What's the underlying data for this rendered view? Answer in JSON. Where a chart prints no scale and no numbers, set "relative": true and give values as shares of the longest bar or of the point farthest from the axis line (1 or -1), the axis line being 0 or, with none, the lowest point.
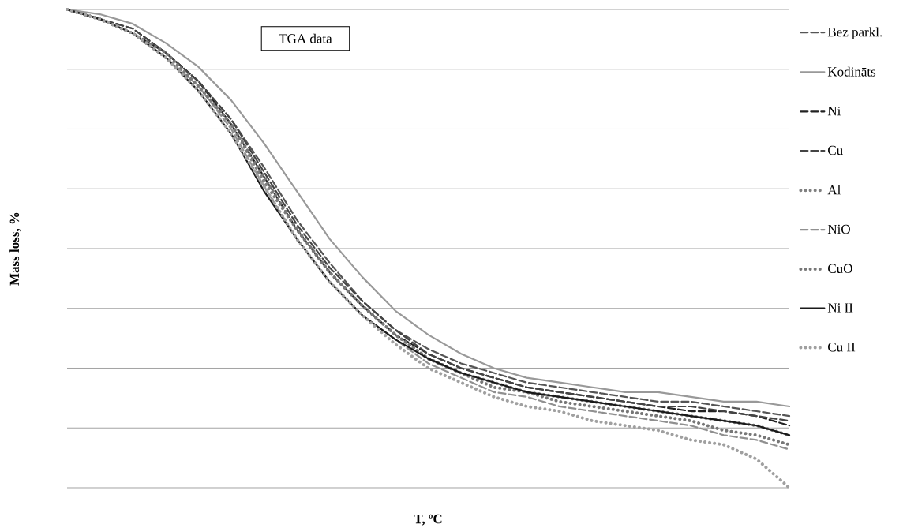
{
  "chart_data": {
    "type": "line",
    "title": "TGA data",
    "xlabel": "T, ºC",
    "ylabel": "Mass loss, %",
    "relative": true,
    "grid": "y",
    "legend": "right",
    "categories": [
      null,
      null,
      null,
      null,
      null,
      null,
      null,
      null,
      null,
      null,
      null,
      null,
      null,
      null,
      null,
      null,
      null,
      null,
      null,
      null,
      null,
      null,
      null
    ],
    "series": [
      {
        "name": "Bez parkl.",
        "color": "#555555",
        "line_style": "dashed",
        "values": [
          1.0,
          0.98,
          0.96,
          0.91,
          0.85,
          0.77,
          0.67,
          0.56,
          0.47,
          0.39,
          0.33,
          0.29,
          0.26,
          0.24,
          0.22,
          0.21,
          0.2,
          0.19,
          0.18,
          0.18,
          0.17,
          0.16,
          0.15
        ]
      },
      {
        "name": "Kodināts",
        "color": "#999999",
        "line_style": "solid",
        "values": [
          1.0,
          0.99,
          0.97,
          0.93,
          0.88,
          0.81,
          0.72,
          0.62,
          0.52,
          0.44,
          0.37,
          0.32,
          0.28,
          0.25,
          0.23,
          0.22,
          0.21,
          0.2,
          0.2,
          0.19,
          0.18,
          0.18,
          0.17
        ]
      },
      {
        "name": "Ni",
        "color": "#222222",
        "line_style": "dashed",
        "values": [
          1.0,
          0.98,
          0.95,
          0.91,
          0.85,
          0.76,
          0.65,
          0.54,
          0.45,
          0.38,
          0.32,
          0.28,
          0.25,
          0.23,
          0.21,
          0.2,
          0.19,
          0.18,
          0.17,
          0.16,
          0.16,
          0.15,
          0.13
        ]
      },
      {
        "name": "Cu",
        "color": "#444444",
        "line_style": "dashed",
        "values": [
          1.0,
          0.98,
          0.96,
          0.91,
          0.85,
          0.77,
          0.66,
          0.55,
          0.46,
          0.39,
          0.33,
          0.28,
          0.25,
          0.23,
          0.21,
          0.2,
          0.19,
          0.18,
          0.17,
          0.17,
          0.16,
          0.15,
          0.14
        ]
      },
      {
        "name": "Al",
        "color": "#808080",
        "line_style": "dotted",
        "values": [
          1.0,
          0.98,
          0.95,
          0.9,
          0.84,
          0.76,
          0.64,
          0.54,
          0.45,
          0.38,
          0.32,
          0.27,
          0.24,
          0.22,
          0.2,
          0.19,
          0.18,
          0.17,
          0.16,
          0.15,
          0.14,
          0.13,
          0.11
        ]
      },
      {
        "name": "NiO",
        "color": "#909090",
        "line_style": "dashed",
        "values": [
          1.0,
          0.98,
          0.95,
          0.9,
          0.84,
          0.75,
          0.63,
          0.52,
          0.43,
          0.36,
          0.31,
          0.26,
          0.23,
          0.2,
          0.19,
          0.17,
          0.16,
          0.15,
          0.14,
          0.13,
          0.11,
          0.1,
          0.08
        ]
      },
      {
        "name": "CuO",
        "color": "#777777",
        "line_style": "dotted",
        "values": [
          1.0,
          0.98,
          0.95,
          0.91,
          0.84,
          0.76,
          0.65,
          0.54,
          0.45,
          0.38,
          0.32,
          0.27,
          0.24,
          0.21,
          0.2,
          0.18,
          0.17,
          0.16,
          0.15,
          0.14,
          0.12,
          0.11,
          0.09
        ]
      },
      {
        "name": "Ni II",
        "color": "#1a1a1a",
        "line_style": "solid",
        "values": [
          1.0,
          0.98,
          0.95,
          0.9,
          0.83,
          0.74,
          0.62,
          0.52,
          0.43,
          0.36,
          0.31,
          0.27,
          0.24,
          0.22,
          0.2,
          0.19,
          0.18,
          0.17,
          0.16,
          0.15,
          0.14,
          0.13,
          0.11
        ]
      },
      {
        "name": "Cu II",
        "color": "#a0a0a0",
        "line_style": "dotted",
        "values": [
          1.0,
          0.98,
          0.95,
          0.9,
          0.83,
          0.74,
          0.63,
          0.52,
          0.43,
          0.36,
          0.3,
          0.25,
          0.22,
          0.19,
          0.17,
          0.16,
          0.14,
          0.13,
          0.12,
          0.1,
          0.09,
          0.06,
          0.0
        ]
      }
    ]
  }
}
